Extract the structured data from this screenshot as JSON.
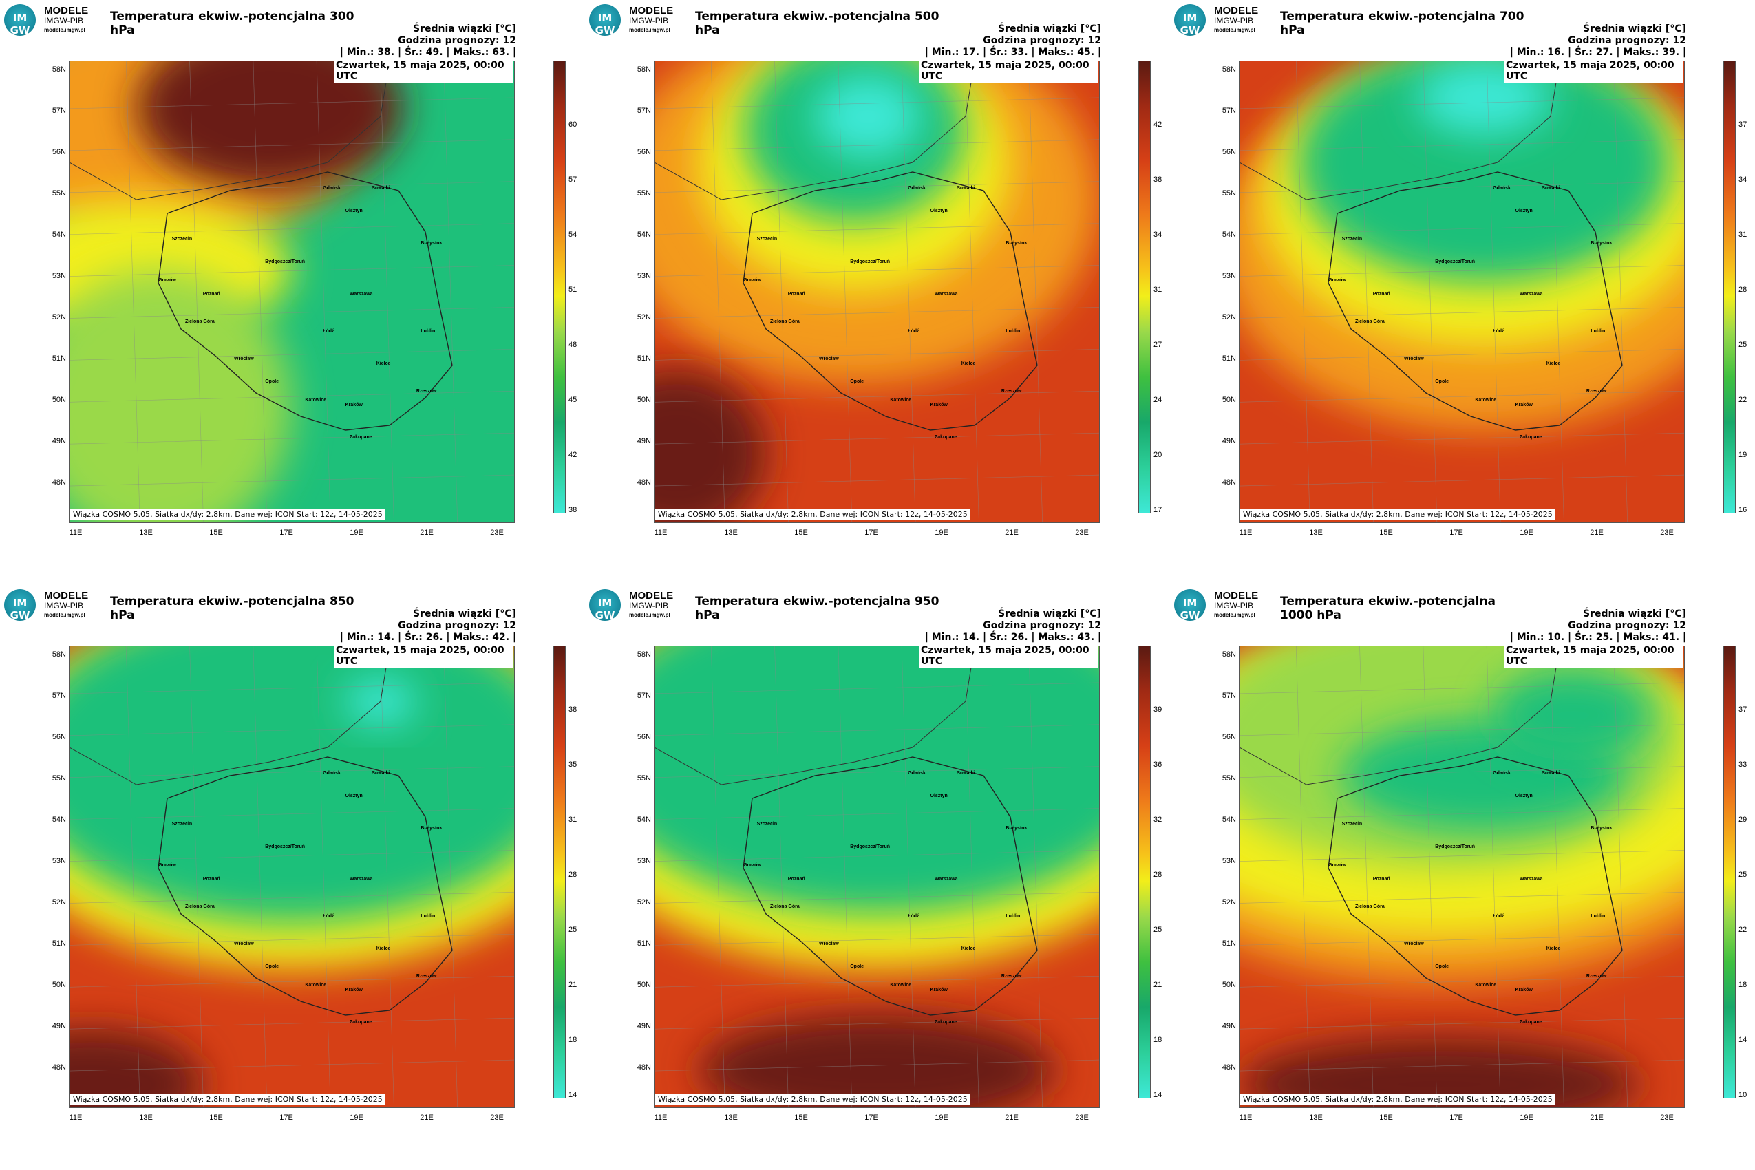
{
  "logo": {
    "mark": "IM GW",
    "line1": "MODELE",
    "line2": "IMGW-PIB",
    "line3": "modele.imgw.pl"
  },
  "common": {
    "units_label": "Średnia wiązki [°C]",
    "forecast_label": "Godzina prognozy: 12",
    "date": "Czwartek, 15 maja 2025, 00:00 UTC",
    "footer": "Wiązka COSMO 5.05. Siatka dx/dy: 2.8km. Dane wej: ICON Start: 12z, 14-05-2025",
    "lat_labels": [
      "58N",
      "57N",
      "56N",
      "55N",
      "54N",
      "53N",
      "52N",
      "51N",
      "50N",
      "49N",
      "48N"
    ],
    "lon_labels": [
      "11E",
      "13E",
      "15E",
      "17E",
      "19E",
      "21E",
      "23E"
    ],
    "cities": [
      "Gdańsk",
      "Suwałki",
      "Olsztyn",
      "Szczecin",
      "Białystok",
      "Bydgoszcz/Toruń",
      "Gorzów",
      "Poznań",
      "Warszawa",
      "Zielona Góra",
      "Łódź",
      "Lublin",
      "Wrocław",
      "Kielce",
      "Opole",
      "Katowice",
      "Kraków",
      "Rzeszów",
      "Zakopane"
    ],
    "colors": {
      "cyan": "#3ee8d6",
      "green": "#1ec07a",
      "yellowgreen": "#9ad94a",
      "yellow": "#f2ee1a",
      "orange": "#f39a1a",
      "red": "#d64016",
      "darkred": "#6b1a12"
    }
  },
  "panels": [
    {
      "title": "Temperatura ekwiw.-potencjalna 300 hPa",
      "stats": "| Min.:   38. | Śr.:   49. | Maks.:   63. |",
      "cbar_labels": [
        "60",
        "57",
        "54",
        "51",
        "48",
        "45",
        "42",
        "38"
      ],
      "scheme": "p300"
    },
    {
      "title": "Temperatura ekwiw.-potencjalna 500 hPa",
      "stats": "| Min.:   17. | Śr.:   33. | Maks.:   45. |",
      "cbar_labels": [
        "42",
        "38",
        "34",
        "31",
        "27",
        "24",
        "20",
        "17"
      ],
      "scheme": "p500"
    },
    {
      "title": "Temperatura ekwiw.-potencjalna 700 hPa",
      "stats": "| Min.:   16. | Śr.:   27. | Maks.:   39. |",
      "cbar_labels": [
        "37",
        "34",
        "31",
        "28",
        "25",
        "22",
        "19",
        "16"
      ],
      "scheme": "p700"
    },
    {
      "title": "Temperatura ekwiw.-potencjalna 850 hPa",
      "stats": "| Min.:   14. | Śr.:   26. | Maks.:   42. |",
      "cbar_labels": [
        "38",
        "35",
        "31",
        "28",
        "25",
        "21",
        "18",
        "14"
      ],
      "scheme": "p850"
    },
    {
      "title": "Temperatura ekwiw.-potencjalna 950 hPa",
      "stats": "| Min.:   14. | Śr.:   26. | Maks.:   43. |",
      "cbar_labels": [
        "39",
        "36",
        "32",
        "28",
        "25",
        "21",
        "18",
        "14"
      ],
      "scheme": "p950"
    },
    {
      "title": "Temperatura ekwiw.-potencjalna 1000 hPa",
      "stats": "| Min.:   10. | Śr.:   25. | Maks.:   41. |",
      "cbar_labels": [
        "37",
        "33",
        "29",
        "25",
        "22",
        "18",
        "14",
        "10"
      ],
      "scheme": "p1000"
    }
  ]
}
